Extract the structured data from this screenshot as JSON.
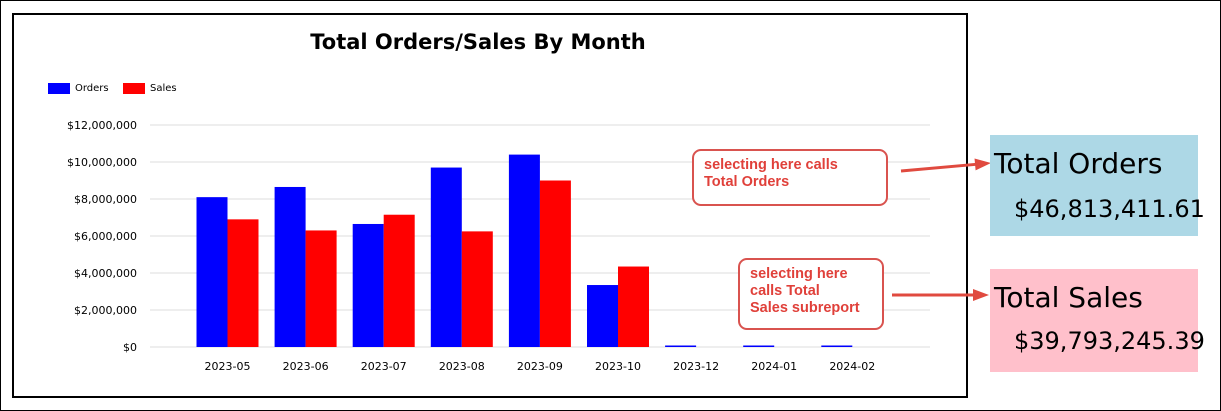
{
  "chart_data": {
    "type": "bar",
    "title": "Total Orders/Sales By Month",
    "categories": [
      "2023-05",
      "2023-06",
      "2023-07",
      "2023-08",
      "2023-09",
      "2023-10",
      "2023-12",
      "2024-01",
      "2024-02"
    ],
    "series": [
      {
        "name": "Orders",
        "color": "#0000ff",
        "values": [
          8100000,
          8650000,
          6650000,
          9700000,
          10400000,
          3350000,
          40000,
          40000,
          40000
        ]
      },
      {
        "name": "Sales",
        "color": "#ff0000",
        "values": [
          6900000,
          6300000,
          7150000,
          6250000,
          9000000,
          4350000,
          0,
          0,
          0
        ]
      }
    ],
    "yticks": [
      "$0",
      "$2,000,000",
      "$4,000,000",
      "$6,000,000",
      "$8,000,000",
      "$10,000,000",
      "$12,000,000"
    ],
    "ylim": [
      0,
      12000000
    ],
    "xlabel": "",
    "ylabel": "",
    "legend_position": "top-left",
    "grid": true
  },
  "callouts": {
    "orders": [
      "selecting here calls",
      "Total Orders"
    ],
    "sales": [
      "selecting here",
      "calls Total",
      "Sales subreport"
    ]
  },
  "summary": {
    "orders_title": "Total Orders",
    "orders_value": "$46,813,411.61",
    "orders_bg": "#add8e6",
    "sales_title": "Total Sales",
    "sales_value": "$39,793,245.39",
    "sales_bg": "#ffc0cb"
  }
}
